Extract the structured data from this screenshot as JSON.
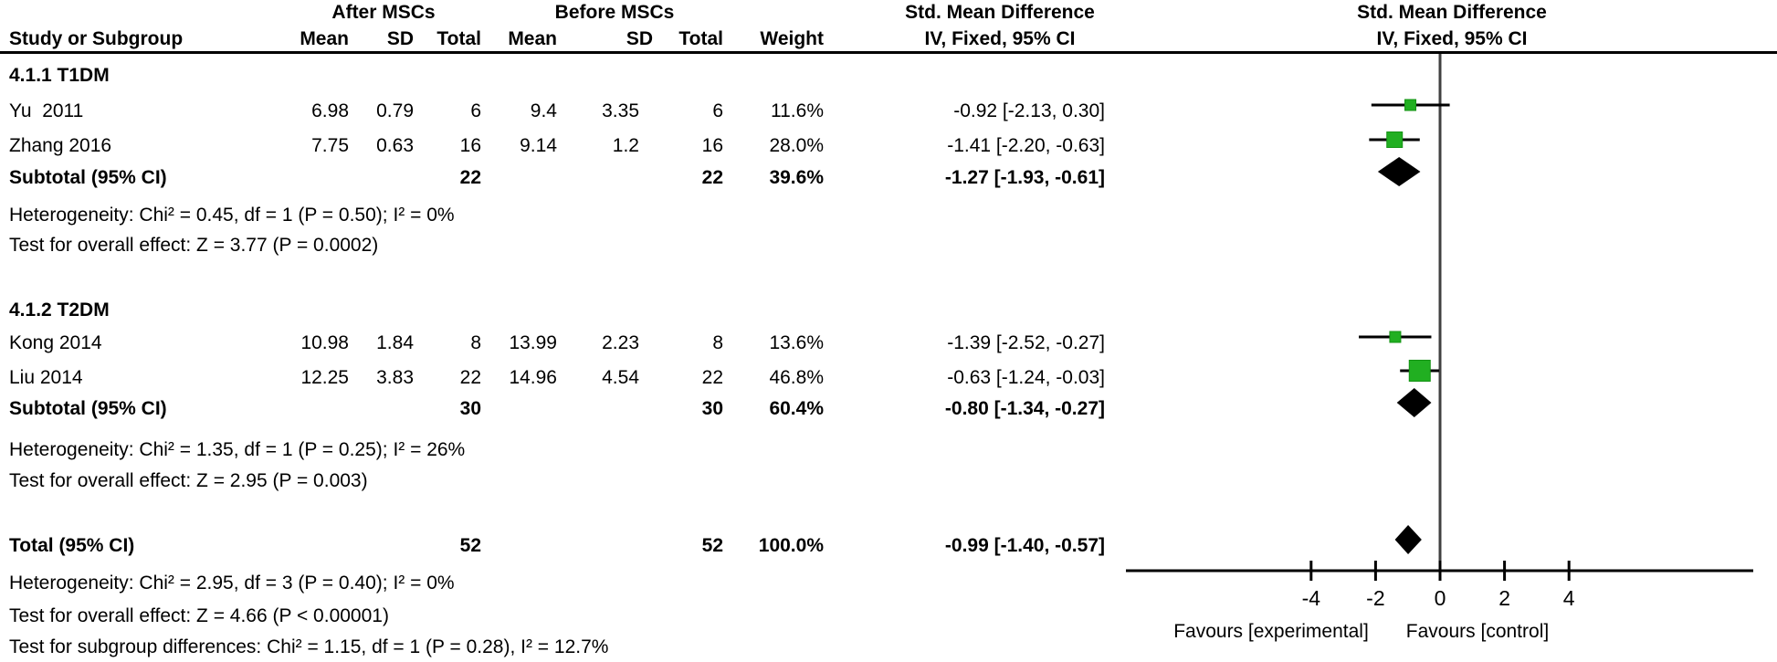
{
  "colors": {
    "marker_green": "#21AF21",
    "marker_green_border": "#149314",
    "diamond_black": "#000000",
    "zero_line_gray": "#404040",
    "line_black": "#000000"
  },
  "table": {
    "group_headers": {
      "after": "After MSCs",
      "before": "Before MSCs",
      "smd_text": "Std. Mean Difference",
      "smd_plot": "Std. Mean Difference"
    },
    "col_headers": {
      "study": "Study or Subgroup",
      "mean1": "Mean",
      "sd1": "SD",
      "total1": "Total",
      "mean2": "Mean",
      "sd2": "SD",
      "total2": "Total",
      "weight": "Weight",
      "ci_text": "IV, Fixed, 95% CI",
      "ci_plot": "IV, Fixed, 95% CI"
    },
    "section1_label": "4.1.1 T1DM",
    "section2_label": "4.1.2 T2DM",
    "rows": {
      "yu": {
        "study": "Yu  2011",
        "mean1": "6.98",
        "sd1": "0.79",
        "total1": "6",
        "mean2": "9.4",
        "sd2": "3.35",
        "total2": "6",
        "weight": "11.6%",
        "ci": "-0.92 [-2.13, 0.30]"
      },
      "zhang": {
        "study": "Zhang 2016",
        "mean1": "7.75",
        "sd1": "0.63",
        "total1": "16",
        "mean2": "9.14",
        "sd2": "1.2",
        "total2": "16",
        "weight": "28.0%",
        "ci": "-1.41 [-2.20, -0.63]"
      },
      "t1_sub": {
        "study": "Subtotal (95% CI)",
        "total1": "22",
        "total2": "22",
        "weight": "39.6%",
        "ci": "-1.27 [-1.93, -0.61]"
      },
      "kong": {
        "study": "Kong 2014",
        "mean1": "10.98",
        "sd1": "1.84",
        "total1": "8",
        "mean2": "13.99",
        "sd2": "2.23",
        "total2": "8",
        "weight": "13.6%",
        "ci": "-1.39 [-2.52, -0.27]"
      },
      "liu": {
        "study": "Liu 2014",
        "mean1": "12.25",
        "sd1": "3.83",
        "total1": "22",
        "mean2": "14.96",
        "sd2": "4.54",
        "total2": "22",
        "weight": "46.8%",
        "ci": "-0.63 [-1.24, -0.03]"
      },
      "t2_sub": {
        "study": "Subtotal (95% CI)",
        "total1": "30",
        "total2": "30",
        "weight": "60.4%",
        "ci": "-0.80 [-1.34, -0.27]"
      },
      "total": {
        "study": "Total (95% CI)",
        "total1": "52",
        "total2": "52",
        "weight": "100.0%",
        "ci": "-0.99 [-1.40, -0.57]"
      }
    },
    "footers": {
      "t1_het": "Heterogeneity: Chi² = 0.45, df = 1 (P = 0.50); I² = 0%",
      "t1_test": "Test for overall effect: Z = 3.77 (P = 0.0002)",
      "t2_het": "Heterogeneity: Chi² = 1.35, df = 1 (P = 0.25); I² = 26%",
      "t2_test": "Test for overall effect: Z = 2.95 (P = 0.003)",
      "total_het": "Heterogeneity: Chi² = 2.95, df = 3 (P = 0.40); I² = 0%",
      "total_test": "Test for overall effect: Z = 4.66 (P < 0.00001)",
      "subgroup_test": "Test for subgroup differences: Chi² = 1.15, df = 1 (P = 0.28), I² = 12.7%"
    }
  },
  "chart_data": {
    "type": "forest",
    "effect_measure": "Std. Mean Difference",
    "method": "IV, Fixed, 95% CI",
    "axis_ticks": [
      -4,
      -2,
      0,
      2,
      4
    ],
    "axis_range": [
      -9.7,
      9.7
    ],
    "favours_left": "Favours [experimental]",
    "favours_right": "Favours [control]",
    "studies": [
      {
        "id": "yu",
        "label": "Yu 2011",
        "smd": -0.92,
        "ci_low": -2.13,
        "ci_high": 0.3,
        "weight_pct": 11.6
      },
      {
        "id": "zhang",
        "label": "Zhang 2016",
        "smd": -1.41,
        "ci_low": -2.2,
        "ci_high": -0.63,
        "weight_pct": 28.0
      },
      {
        "id": "kong",
        "label": "Kong 2014",
        "smd": -1.39,
        "ci_low": -2.52,
        "ci_high": -0.27,
        "weight_pct": 13.6
      },
      {
        "id": "liu",
        "label": "Liu 2014",
        "smd": -0.63,
        "ci_low": -1.24,
        "ci_high": -0.03,
        "weight_pct": 46.8
      }
    ],
    "diamonds": [
      {
        "id": "t1_sub",
        "label": "Subtotal T1DM (95% CI)",
        "smd": -1.27,
        "ci_low": -1.93,
        "ci_high": -0.61
      },
      {
        "id": "t2_sub",
        "label": "Subtotal T2DM (95% CI)",
        "smd": -0.8,
        "ci_low": -1.34,
        "ci_high": -0.27
      },
      {
        "id": "total",
        "label": "Total (95% CI)",
        "smd": -0.99,
        "ci_low": -1.4,
        "ci_high": -0.57
      }
    ]
  }
}
